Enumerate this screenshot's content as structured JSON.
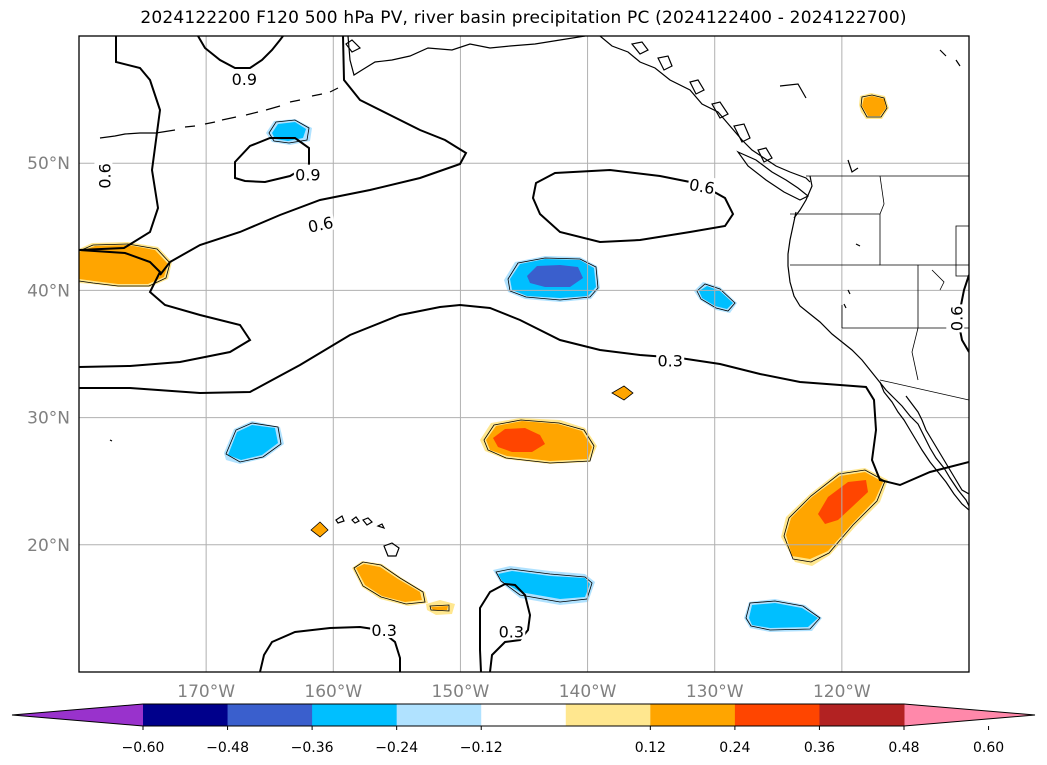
{
  "title": "2024122200 F120 500 hPa PV, river basin precipitation PC (2024122400 - 2024122700)",
  "map": {
    "lon_range": [
      -180,
      -110
    ],
    "lat_range": [
      10,
      60
    ],
    "lon_ticks": [
      {
        "lon": -170,
        "label": "170°W"
      },
      {
        "lon": -160,
        "label": "160°W"
      },
      {
        "lon": -150,
        "label": "150°W"
      },
      {
        "lon": -140,
        "label": "140°W"
      },
      {
        "lon": -130,
        "label": "130°W"
      },
      {
        "lon": -120,
        "label": "120°W"
      }
    ],
    "lat_ticks": [
      {
        "lat": 20,
        "label": "20°N"
      },
      {
        "lat": 30,
        "label": "30°N"
      },
      {
        "lat": 40,
        "label": "40°N"
      },
      {
        "lat": 50,
        "label": "50°N"
      }
    ],
    "grid": true
  },
  "pv_contour_labels": [
    {
      "text": "0.9",
      "lon": -167,
      "lat": 56.6
    },
    {
      "text": "0.9",
      "lon": -162,
      "lat": 49.1
    },
    {
      "text": "0.6",
      "lon": -178,
      "lat": 49.0
    },
    {
      "text": "0.6",
      "lon": -161,
      "lat": 45.2
    },
    {
      "text": "0.6",
      "lon": -131,
      "lat": 48.2
    },
    {
      "text": "0.3",
      "lon": -133.5,
      "lat": 34.5
    },
    {
      "text": "0.6",
      "lon": -111,
      "lat": 37.8
    },
    {
      "text": "0.3",
      "lon": -156,
      "lat": 13.3
    },
    {
      "text": "0.3",
      "lon": -146,
      "lat": 13.2
    }
  ],
  "precip_pc_anomalies": [
    {
      "sign": "positive",
      "lon": -175,
      "lat": 42,
      "peak": 0.3
    },
    {
      "sign": "positive",
      "lon": -144,
      "lat": 28.2,
      "peak": 0.4
    },
    {
      "sign": "positive",
      "lon": -121,
      "lat": 22,
      "peak": 0.42
    },
    {
      "sign": "positive",
      "lon": -156,
      "lat": 17,
      "peak": 0.3
    },
    {
      "sign": "positive",
      "lon": -117.4,
      "lat": 54.6,
      "peak": 0.3
    },
    {
      "sign": "positive",
      "lon": -137,
      "lat": 32,
      "peak": 0.2
    },
    {
      "sign": "positive",
      "lon": -162.9,
      "lat": 21.2,
      "peak": 0.2
    },
    {
      "sign": "negative",
      "lon": -143,
      "lat": 41,
      "peak": -0.4
    },
    {
      "sign": "negative",
      "lon": -143,
      "lat": 16.8,
      "peak": -0.3
    },
    {
      "sign": "negative",
      "lon": -165.5,
      "lat": 28,
      "peak": -0.3
    },
    {
      "sign": "negative",
      "lon": -160.5,
      "lat": 52.5,
      "peak": -0.28
    },
    {
      "sign": "negative",
      "lon": -129.5,
      "lat": 39.5,
      "peak": -0.28
    },
    {
      "sign": "negative",
      "lon": -125.5,
      "lat": 14.5,
      "peak": -0.3
    }
  ],
  "colorbar": {
    "levels": [
      -0.72,
      -0.6,
      -0.48,
      -0.36,
      -0.24,
      -0.12,
      0.12,
      0.24,
      0.36,
      0.48,
      0.6,
      0.72
    ],
    "colors": [
      "#9932cc",
      "#00008b",
      "#3a5fcd",
      "#00bfff",
      "#b0e2ff",
      "#ffffff",
      "#ffe78f",
      "#ffa500",
      "#ff4500",
      "#b22222",
      "#ff88aa"
    ],
    "tick_labels": [
      "−0.60",
      "−0.48",
      "−0.36",
      "−0.24",
      "−0.12",
      "0.12",
      "0.24",
      "0.36",
      "0.48",
      "0.60"
    ]
  }
}
